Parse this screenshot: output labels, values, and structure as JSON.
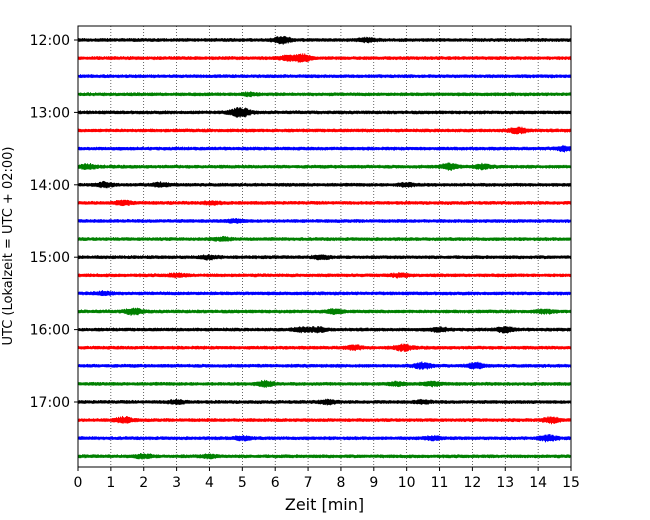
{
  "chart_data": {
    "type": "line",
    "title": "",
    "xlabel": "Zeit  [min]",
    "ylabel": "UTC (Lokalzeit = UTC + 02:00)",
    "xlim": [
      0,
      15
    ],
    "x_ticks": [
      0,
      1,
      2,
      3,
      4,
      5,
      6,
      7,
      8,
      9,
      10,
      11,
      12,
      13,
      14,
      15
    ],
    "x_tick_labels": [
      "0",
      "1",
      "2",
      "3",
      "4",
      "5",
      "6",
      "7",
      "8",
      "9",
      "10",
      "11",
      "12",
      "13",
      "14",
      "15"
    ],
    "y_tick_labels": [
      "12:00",
      "13:00",
      "14:00",
      "15:00",
      "16:00",
      "17:00"
    ],
    "grid": "vertical dotted",
    "legend": "none",
    "trace_interval_min": 15,
    "trace_colors": [
      "#000000",
      "#ff0000",
      "#0000ff",
      "#008000"
    ],
    "traces": [
      {
        "start": "12:00",
        "color": "#000000",
        "events": [
          [
            6.2,
            3.0
          ],
          [
            8.8,
            1.6
          ]
        ]
      },
      {
        "start": "12:15",
        "color": "#ff0000",
        "events": [
          [
            6.8,
            3.2
          ],
          [
            6.4,
            1.8
          ]
        ]
      },
      {
        "start": "12:30",
        "color": "#0000ff",
        "events": []
      },
      {
        "start": "12:45",
        "color": "#008000",
        "events": [
          [
            5.2,
            1.2
          ]
        ]
      },
      {
        "start": "13:00",
        "color": "#000000",
        "events": [
          [
            5.0,
            3.0
          ],
          [
            4.8,
            1.8
          ]
        ]
      },
      {
        "start": "13:15",
        "color": "#ff0000",
        "events": [
          [
            13.4,
            2.4
          ]
        ]
      },
      {
        "start": "13:30",
        "color": "#0000ff",
        "events": [
          [
            14.8,
            1.8
          ]
        ]
      },
      {
        "start": "13:45",
        "color": "#008000",
        "events": [
          [
            0.3,
            1.8
          ],
          [
            11.3,
            2.4
          ],
          [
            12.3,
            1.8
          ]
        ]
      },
      {
        "start": "14:00",
        "color": "#000000",
        "events": [
          [
            0.8,
            1.8
          ],
          [
            2.5,
            1.6
          ],
          [
            10.0,
            1.4
          ]
        ]
      },
      {
        "start": "14:15",
        "color": "#ff0000",
        "events": [
          [
            1.4,
            1.6
          ],
          [
            4.1,
            1.2
          ]
        ]
      },
      {
        "start": "14:30",
        "color": "#0000ff",
        "events": [
          [
            4.8,
            1.2
          ]
        ]
      },
      {
        "start": "14:45",
        "color": "#008000",
        "events": [
          [
            4.4,
            1.2
          ]
        ]
      },
      {
        "start": "15:00",
        "color": "#000000",
        "events": [
          [
            4.0,
            1.4
          ],
          [
            7.4,
            1.4
          ]
        ]
      },
      {
        "start": "15:15",
        "color": "#ff0000",
        "events": [
          [
            9.8,
            1.4
          ],
          [
            3.0,
            1.2
          ]
        ]
      },
      {
        "start": "15:30",
        "color": "#0000ff",
        "events": [
          [
            0.8,
            1.4
          ]
        ]
      },
      {
        "start": "15:45",
        "color": "#008000",
        "events": [
          [
            1.7,
            2.6
          ],
          [
            7.8,
            1.6
          ],
          [
            14.2,
            1.4
          ]
        ]
      },
      {
        "start": "16:00",
        "color": "#000000",
        "events": [
          [
            6.8,
            1.8
          ],
          [
            7.3,
            1.8
          ],
          [
            13.0,
            2.2
          ],
          [
            11.0,
            1.6
          ]
        ]
      },
      {
        "start": "16:15",
        "color": "#ff0000",
        "events": [
          [
            9.9,
            2.6
          ],
          [
            8.4,
            1.6
          ]
        ]
      },
      {
        "start": "16:30",
        "color": "#0000ff",
        "events": [
          [
            10.5,
            2.6
          ],
          [
            12.1,
            2.2
          ]
        ]
      },
      {
        "start": "16:45",
        "color": "#008000",
        "events": [
          [
            5.7,
            2.4
          ],
          [
            10.8,
            1.6
          ],
          [
            9.7,
            1.4
          ]
        ]
      },
      {
        "start": "17:00",
        "color": "#000000",
        "events": [
          [
            7.6,
            1.6
          ],
          [
            3.0,
            1.4
          ],
          [
            10.5,
            1.2
          ]
        ]
      },
      {
        "start": "17:15",
        "color": "#ff0000",
        "events": [
          [
            1.4,
            2.4
          ],
          [
            14.4,
            2.4
          ]
        ]
      },
      {
        "start": "17:30",
        "color": "#0000ff",
        "events": [
          [
            5.0,
            1.6
          ],
          [
            10.8,
            1.4
          ],
          [
            14.3,
            2.4
          ]
        ]
      },
      {
        "start": "17:45",
        "color": "#008000",
        "events": [
          [
            2.0,
            1.6
          ],
          [
            4.0,
            1.2
          ]
        ]
      }
    ]
  }
}
